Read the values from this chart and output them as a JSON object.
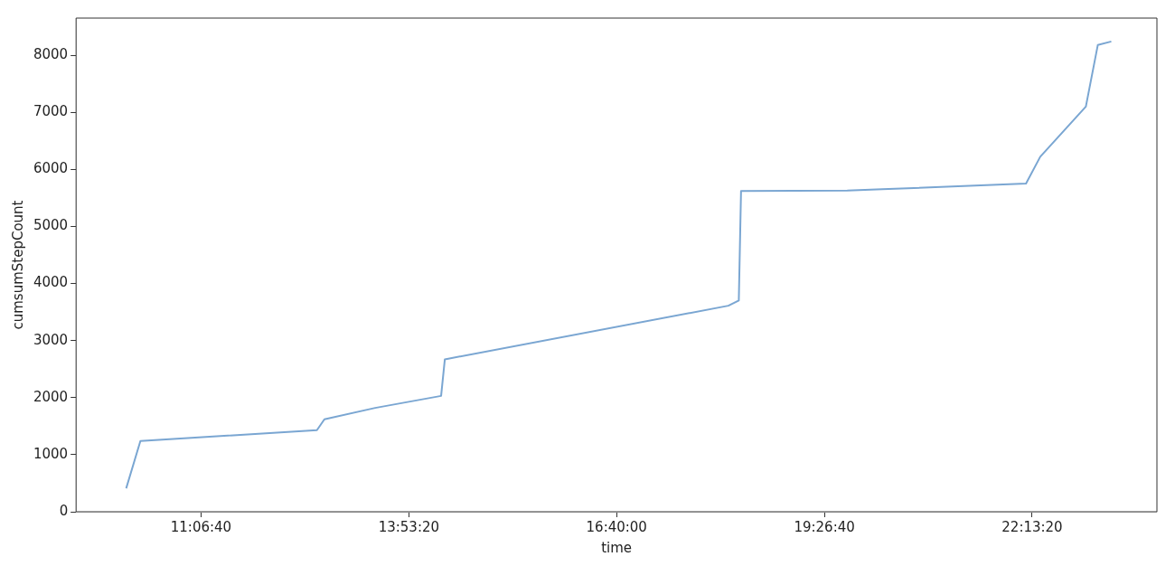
{
  "chart_data": {
    "type": "line",
    "xlabel": "time",
    "ylabel": "cumsumStepCount",
    "x": [
      10.11,
      10.3,
      12.66,
      12.76,
      13.44,
      14.32,
      14.37,
      18.16,
      18.3,
      18.33,
      19.75,
      20.22,
      22.14,
      22.33,
      22.94,
      23.1,
      23.28
    ],
    "series": [
      {
        "color": "#7aa6d2",
        "values": [
          410,
          1240,
          1430,
          1620,
          1820,
          2030,
          2670,
          3610,
          3700,
          5620,
          5630,
          5650,
          5750,
          6220,
          7100,
          8180,
          8240
        ]
      }
    ],
    "xlim": [
      9.44,
      23.89
    ],
    "xticks": [
      {
        "value": 11.1111,
        "label": "11:06:40"
      },
      {
        "value": 13.8889,
        "label": "13:53:20"
      },
      {
        "value": 16.6667,
        "label": "16:40:00"
      },
      {
        "value": 19.4444,
        "label": "19:26:40"
      },
      {
        "value": 22.2222,
        "label": "22:13:20"
      }
    ],
    "ylim": [
      0,
      8650
    ],
    "yticks": [
      0,
      1000,
      2000,
      3000,
      4000,
      5000,
      6000,
      7000,
      8000
    ],
    "grid": false,
    "legend": false,
    "marker": "none",
    "line_style": "solid"
  }
}
